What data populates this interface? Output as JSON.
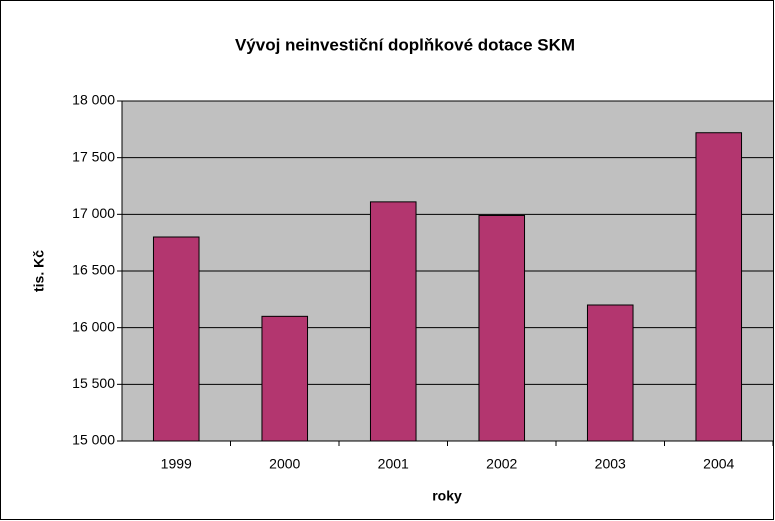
{
  "chart_data": {
    "type": "bar",
    "title": "Vývoj neinvestiční doplňkové dotace SKM",
    "x_label": "roky",
    "y_label": "tis. Kč",
    "categories": [
      "1999",
      "2000",
      "2001",
      "2002",
      "2003",
      "2004"
    ],
    "values": [
      16800,
      16100,
      17110,
      16990,
      16200,
      17720
    ],
    "color": "#b3366f",
    "plot_background": "#c0c0c0",
    "ylim": [
      15000,
      18000
    ],
    "yticks": [
      {
        "value": 15000,
        "label": "15 000"
      },
      {
        "value": 15500,
        "label": "15 500"
      },
      {
        "value": 16000,
        "label": "16 000"
      },
      {
        "value": 16500,
        "label": "16 500"
      },
      {
        "value": 17000,
        "label": "17 000"
      },
      {
        "value": 17500,
        "label": "17 500"
      },
      {
        "value": 18000,
        "label": "18 000"
      }
    ],
    "grid": true
  }
}
